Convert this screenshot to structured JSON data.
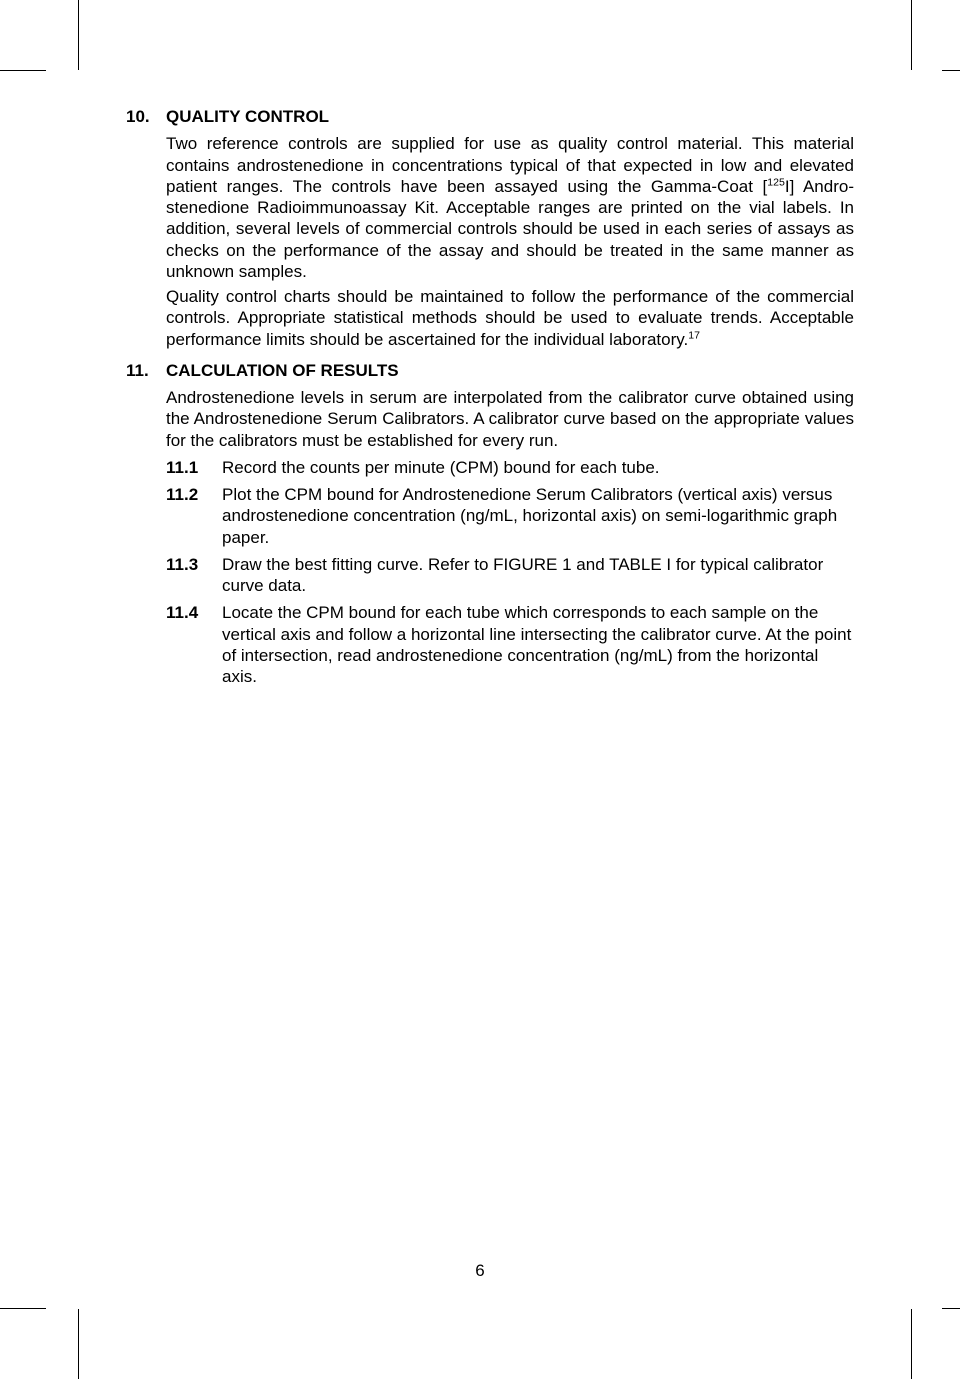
{
  "section10": {
    "number": "10.",
    "title": "QUALITY CONTROL",
    "para1_a": "Two reference controls are supplied for use as quality control material. This material contains androstenedione in concentrations typical of that expected in low and elevated patient ranges. The controls have been assayed using the Gamma-Coat [",
    "para1_sup": "125",
    "para1_b": "I] Andro-stenedione Radioimmunoassay Kit. Acceptable ranges are printed on the vial labels. In addition, several levels of commercial controls should be used in each series of assays as checks on the performance of the assay and should be treated in the same manner as unknown samples.",
    "para2_a": "Quality control charts should be maintained to follow the performance of the commercial controls. Appropriate statistical methods should be used to evaluate trends. Acceptable performance limits should be ascertained for the individual laboratory.",
    "para2_sup": "17"
  },
  "section11": {
    "number": "11.",
    "title": "CALCULATION OF RESULTS",
    "intro": "Androstenedione levels in serum are interpolated from the calibrator curve obtained using the Androstenedione Serum Calibrators. A calibrator curve based on the appropriate values for the calibrators must be established for every run.",
    "steps": [
      {
        "num": "11.1",
        "text": "Record the counts per minute (CPM) bound for each tube."
      },
      {
        "num": "11.2",
        "text": "Plot the CPM bound for Androstenedione Serum Calibrators (vertical axis) versus androstenedione concentration (ng/mL, horizontal axis) on semi-logarithmic graph paper."
      },
      {
        "num": "11.3",
        "text": "Draw the best fitting curve. Refer to FIGURE 1 and TABLE I for typical calibrator curve data."
      },
      {
        "num": "11.4",
        "text": "Locate the CPM bound for each tube which corresponds to each sample on the vertical axis and follow a horizontal line intersecting the calibrator curve. At the point of intersection, read androstenedione concentration (ng/mL) from the horizontal axis."
      }
    ]
  },
  "pageNumber": "6"
}
